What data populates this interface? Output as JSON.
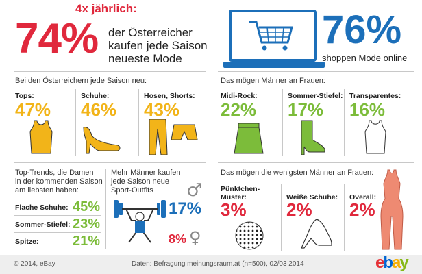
{
  "colors": {
    "pink": "#e0283c",
    "yellow": "#f2b419",
    "green": "#7cbc3a",
    "blue": "#1c6fb9"
  },
  "header": {
    "frequency": "4x jährlich:",
    "main_pct": "74%",
    "main_text_1": "der Österreicher",
    "main_text_2": "kaufen jede Saison",
    "main_text_3": "neueste Mode",
    "online_pct": "76%",
    "online_text": "shoppen Mode online"
  },
  "season_new": {
    "title": "Bei den Österreichern jede Saison neu:",
    "items": [
      {
        "label": "Tops:",
        "value": "47%",
        "icon": "tank-top-icon"
      },
      {
        "label": "Schuhe:",
        "value": "46%",
        "icon": "high-heel-icon"
      },
      {
        "label": "Hosen, Shorts:",
        "value": "43%",
        "icon": "trousers-shorts-icon"
      }
    ]
  },
  "men_like": {
    "title": "Das mögen Männer an Frauen:",
    "items": [
      {
        "label": "Midi-Rock:",
        "value": "22%",
        "icon": "skirt-icon"
      },
      {
        "label": "Sommer-Stiefel:",
        "value": "17%",
        "icon": "boot-icon"
      },
      {
        "label": "Transparentes:",
        "value": "16%",
        "icon": "transparent-top-icon"
      }
    ]
  },
  "trends": {
    "title_1": "Top-Trends, die Damen",
    "title_2": "in der kommenden Saison",
    "title_3": "am liebsten haben:",
    "items": [
      {
        "label": "Flache Schuhe:",
        "value": "45%"
      },
      {
        "label": "Sommer-Stiefel:",
        "value": "23%"
      },
      {
        "label": "Spitze:",
        "value": "21%"
      }
    ]
  },
  "sport": {
    "text_1": "Mehr Männer kaufen",
    "text_2": "jede Saison neue",
    "text_3": "Sport-Outfits",
    "male_pct": "17%",
    "female_pct": "8%",
    "male_symbol": "♂",
    "female_symbol": "♀"
  },
  "men_dislike": {
    "title": "Das mögen die wenigsten Männer an Frauen:",
    "items": [
      {
        "label_1": "Pünktchen-",
        "label_2": "Muster:",
        "value": "3%",
        "icon": "polka-dot-icon"
      },
      {
        "label_1": "Weiße Schuhe:",
        "label_2": "",
        "value": "2%",
        "icon": "white-shoe-icon"
      },
      {
        "label_1": "Overall:",
        "label_2": "",
        "value": "2%",
        "icon": "overall-icon"
      }
    ]
  },
  "footer": {
    "copyright": "© 2014, eBay",
    "source": "Daten: Befragung meinungsraum.at (n=500), 02/03 2014",
    "logo": [
      "e",
      "b",
      "a",
      "y"
    ],
    "logo_colors": [
      "#e53238",
      "#0064d2",
      "#f5af02",
      "#86b817"
    ]
  }
}
